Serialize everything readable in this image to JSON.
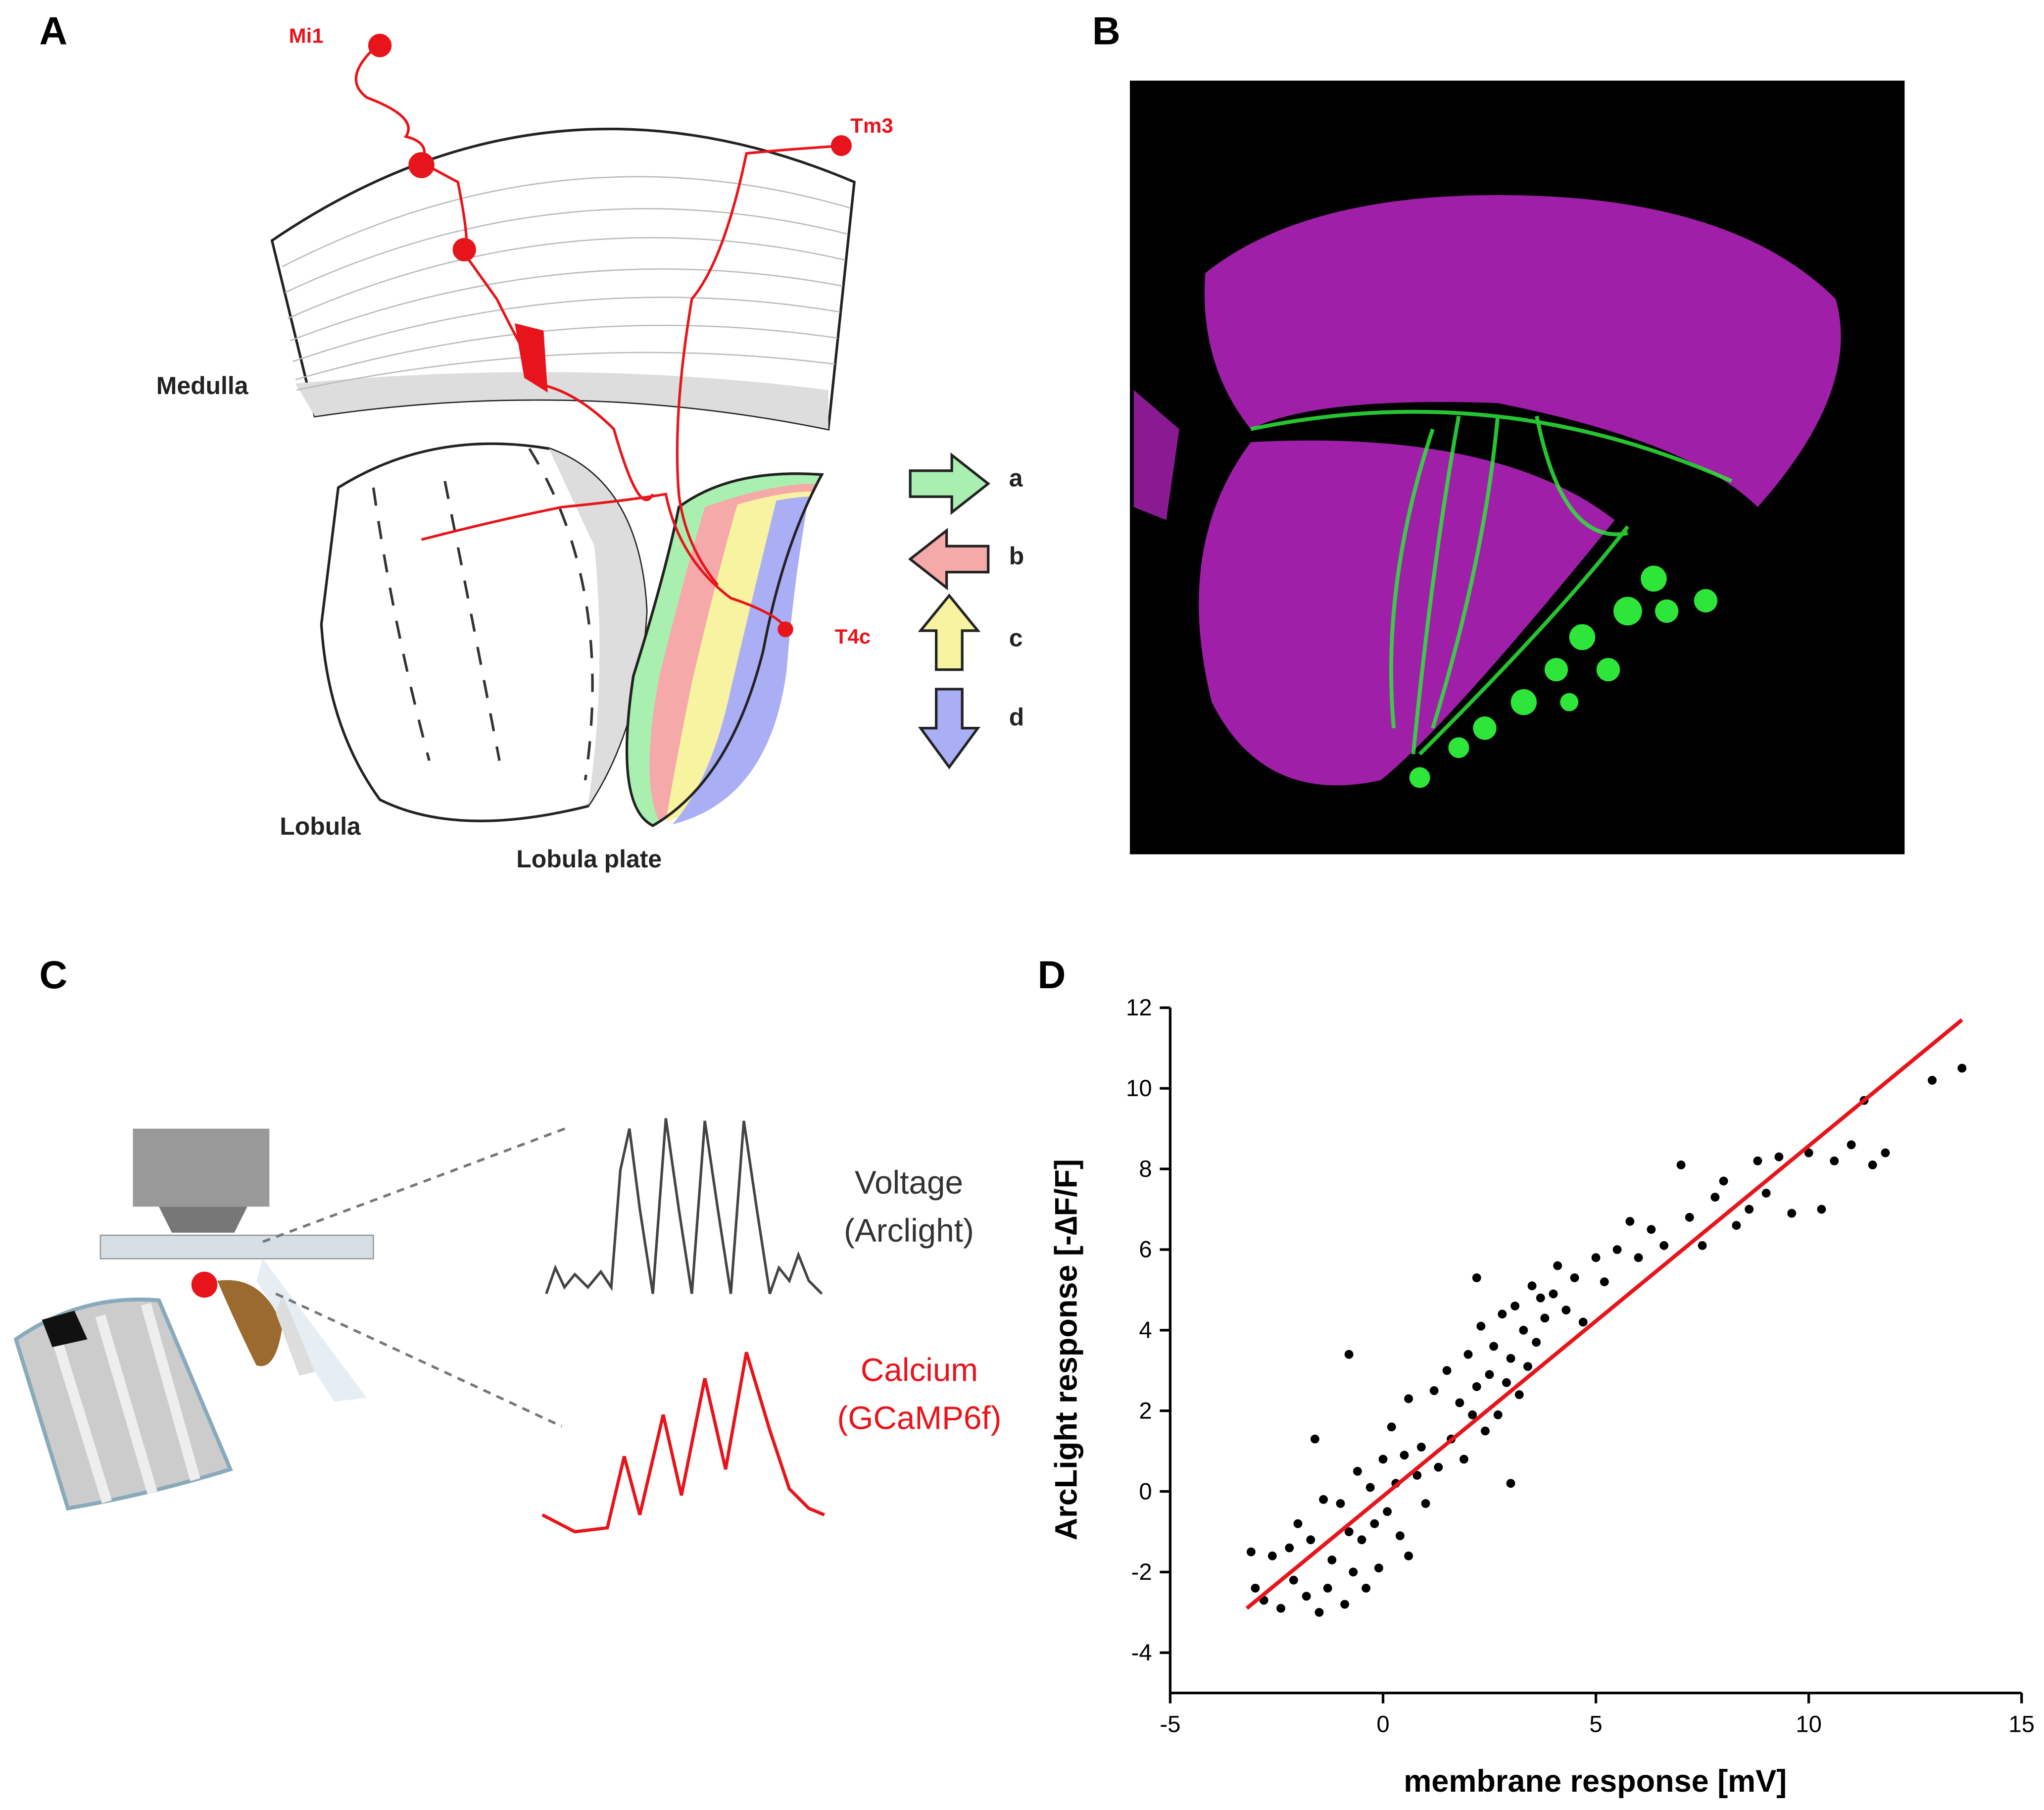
{
  "panels": {
    "A": {
      "label": "A",
      "neurons": [
        "Mi1",
        "Tm3",
        "T4c"
      ],
      "regions": [
        "Medulla",
        "Lobula",
        "Lobula plate"
      ],
      "directions": [
        "a",
        "b",
        "c",
        "d"
      ]
    },
    "B": {
      "label": "B"
    },
    "C": {
      "label": "C",
      "voltage_label": [
        "Voltage",
        "(Arclight)"
      ],
      "calcium_label": [
        "Calcium",
        "(GCaMP6f)"
      ]
    }
  },
  "chart_data": {
    "type": "scatter",
    "panel_label": "D",
    "x_label": "membrane response [mV]",
    "y_label": "ArcLight response [-∆F/F]",
    "x": [
      -3.1,
      -3,
      -2.8,
      -2.6,
      -2.4,
      -2.2,
      -2.1,
      -2,
      -1.8,
      -1.7,
      -1.5,
      -1.4,
      -1.3,
      -1.2,
      -1,
      -0.9,
      -0.8,
      -0.7,
      -0.6,
      -0.5,
      -0.4,
      -0.3,
      -0.2,
      -0.1,
      0,
      0.1,
      0.2,
      0.3,
      0.4,
      0.5,
      0.6,
      0.8,
      0.9,
      1,
      1.2,
      1.3,
      1.5,
      1.6,
      1.8,
      1.9,
      2,
      2.1,
      2.2,
      2.3,
      2.4,
      2.5,
      2.6,
      2.7,
      2.8,
      2.9,
      3,
      3.1,
      3.2,
      3.3,
      3.4,
      3.5,
      3.6,
      3.7,
      3.8,
      4,
      4.1,
      4.3,
      4.5,
      4.7,
      5,
      5.2,
      5.5,
      5.8,
      6,
      6.3,
      6.6,
      7,
      7.2,
      7.5,
      7.8,
      8,
      8.3,
      8.6,
      8.8,
      9,
      9.3,
      9.6,
      10,
      10.3,
      10.6,
      11,
      11.3,
      11.5,
      11.8,
      12.9,
      13.6,
      -0.8,
      2.2,
      -1.6,
      0.6,
      3.0
    ],
    "y": [
      -1.5,
      -2.4,
      -2.7,
      -1.6,
      -2.9,
      -1.4,
      -2.2,
      -0.8,
      -2.6,
      -1.2,
      -3,
      -0.2,
      -2.4,
      -1.7,
      -0.3,
      -2.8,
      -1,
      -2,
      0.5,
      -1.2,
      -2.4,
      0.1,
      -0.8,
      -1.9,
      0.8,
      -0.5,
      1.6,
      0.2,
      -1.1,
      0.9,
      2.3,
      0.4,
      1.1,
      -0.3,
      2.5,
      0.6,
      3,
      1.3,
      2.2,
      0.8,
      3.4,
      1.9,
      2.6,
      4.1,
      1.5,
      2.9,
      3.6,
      1.9,
      4.4,
      2.7,
      3.3,
      4.6,
      2.4,
      4,
      3.1,
      5.1,
      3.7,
      4.8,
      4.3,
      4.9,
      5.6,
      4.5,
      5.3,
      4.2,
      5.8,
      5.2,
      6,
      6.7,
      5.8,
      6.5,
      6.1,
      8.1,
      6.8,
      6.1,
      7.3,
      7.7,
      6.6,
      7,
      8.2,
      7.4,
      8.3,
      6.9,
      8.4,
      7,
      8.2,
      8.6,
      9.7,
      8.1,
      8.4,
      10.2,
      10.5,
      3.4,
      5.3,
      1.3,
      -1.6,
      0.2
    ],
    "color": "#000000",
    "fit_line": {
      "x": [
        -3.2,
        13.6
      ],
      "y": [
        -2.9,
        11.7
      ],
      "color": "#e8141b"
    },
    "xlim": [
      -5,
      15
    ],
    "xticks": [
      -5,
      0,
      5,
      10,
      15
    ],
    "ylim": [
      -5,
      12
    ],
    "yticks": [
      -4,
      -2,
      0,
      2,
      4,
      6,
      8,
      10,
      12
    ]
  }
}
